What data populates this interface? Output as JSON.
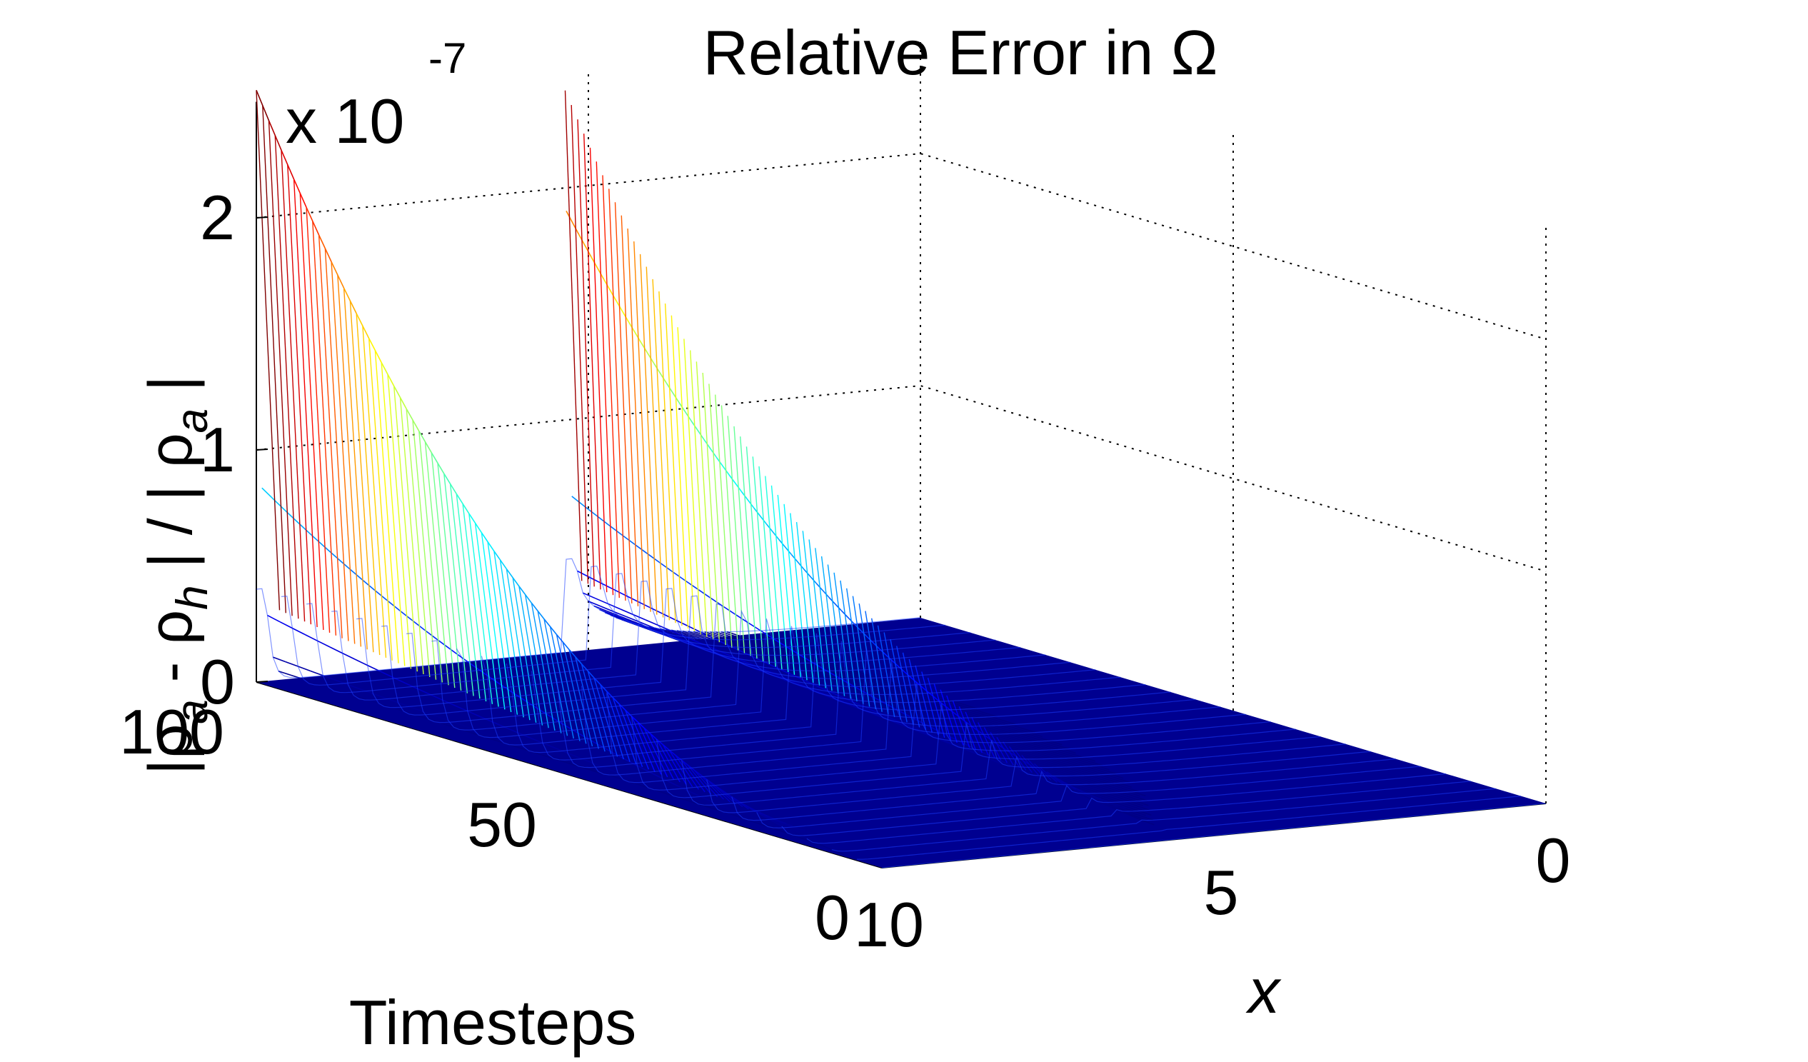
{
  "chart_data": {
    "type": "surface",
    "title": "Relative Error in Ω",
    "exponent": {
      "base_label": "x 10",
      "power_label": "-7"
    },
    "zlabel": {
      "full_text": "|ρa - ρh| / |ρa|",
      "parts": {
        "open_bar": "|",
        "rho1": "ρ",
        "sub1": "a",
        "minus": " - ",
        "rho2": "ρ",
        "sub2": "h",
        "mid": " | / | ",
        "rho3": "ρ",
        "sub3": "a",
        "close_bar": " |"
      }
    },
    "xlabel": "x",
    "ylabel": "Timesteps",
    "x_range": [
      0,
      10
    ],
    "timesteps_range": [
      0,
      100
    ],
    "z_range": [
      0,
      2.5
    ],
    "z_scale": "1e-7",
    "x_ticks": [
      {
        "value": 0,
        "label": "0"
      },
      {
        "value": 5,
        "label": "5"
      },
      {
        "value": 10,
        "label": "10"
      }
    ],
    "timestep_ticks": [
      {
        "value": 0,
        "label": "0"
      },
      {
        "value": 50,
        "label": "50"
      },
      {
        "value": 100,
        "label": "100"
      }
    ],
    "z_ticks": [
      {
        "value": 0,
        "label": "0"
      },
      {
        "value": 1,
        "label": "1"
      },
      {
        "value": 2,
        "label": "2"
      }
    ],
    "grid": true,
    "colormap": "jet",
    "mesh": {
      "x_samples": 120,
      "timestep_samples": 100
    },
    "surface_peaks": [
      {
        "x": 10,
        "timestep": 100,
        "value": 2.25,
        "units": "1e-7",
        "decay_along": "timesteps"
      },
      {
        "x": 5.35,
        "timestep": 100,
        "value": 2.12,
        "units": "1e-7",
        "decay_along": "timesteps"
      }
    ],
    "baseline_value": 0
  }
}
